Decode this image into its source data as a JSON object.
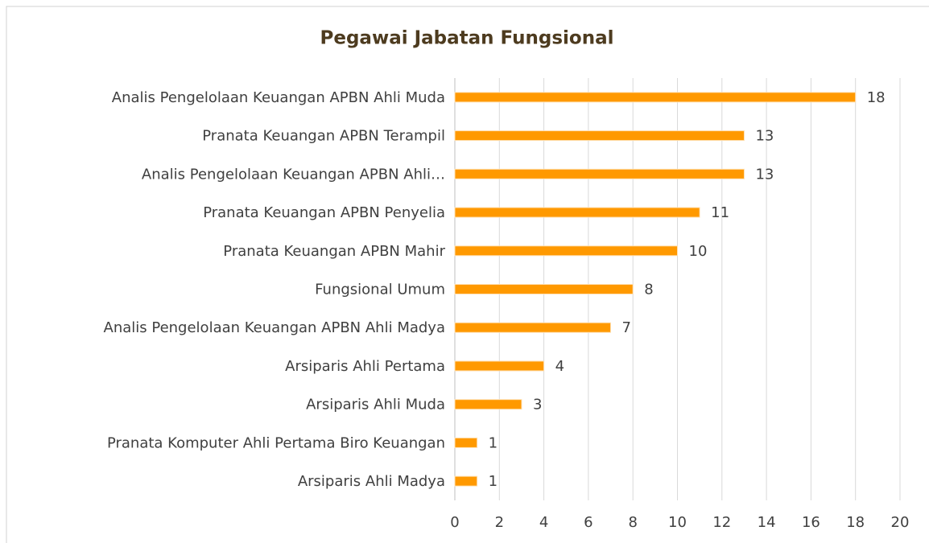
{
  "chart_data": {
    "type": "bar",
    "orientation": "horizontal",
    "title": "Pegawai Jabatan Fungsional",
    "categories": [
      "Analis Pengelolaan Keuangan APBN Ahli Muda",
      "Pranata Keuangan APBN Terampil",
      "Analis Pengelolaan Keuangan APBN Ahli…",
      "Pranata Keuangan APBN Penyelia",
      "Pranata Keuangan APBN Mahir",
      "Fungsional Umum",
      "Analis Pengelolaan Keuangan APBN Ahli Madya",
      "Arsiparis Ahli Pertama",
      "Arsiparis Ahli Muda",
      "Pranata Komputer Ahli Pertama Biro Keuangan",
      "Arsiparis Ahli Madya"
    ],
    "values": [
      18,
      13,
      13,
      11,
      10,
      8,
      7,
      4,
      3,
      1,
      1
    ],
    "color": "#ff9900",
    "xlim": [
      0,
      20
    ],
    "xticks": [
      0,
      2,
      4,
      6,
      8,
      10,
      12,
      14,
      16,
      18,
      20
    ],
    "grid": true
  }
}
